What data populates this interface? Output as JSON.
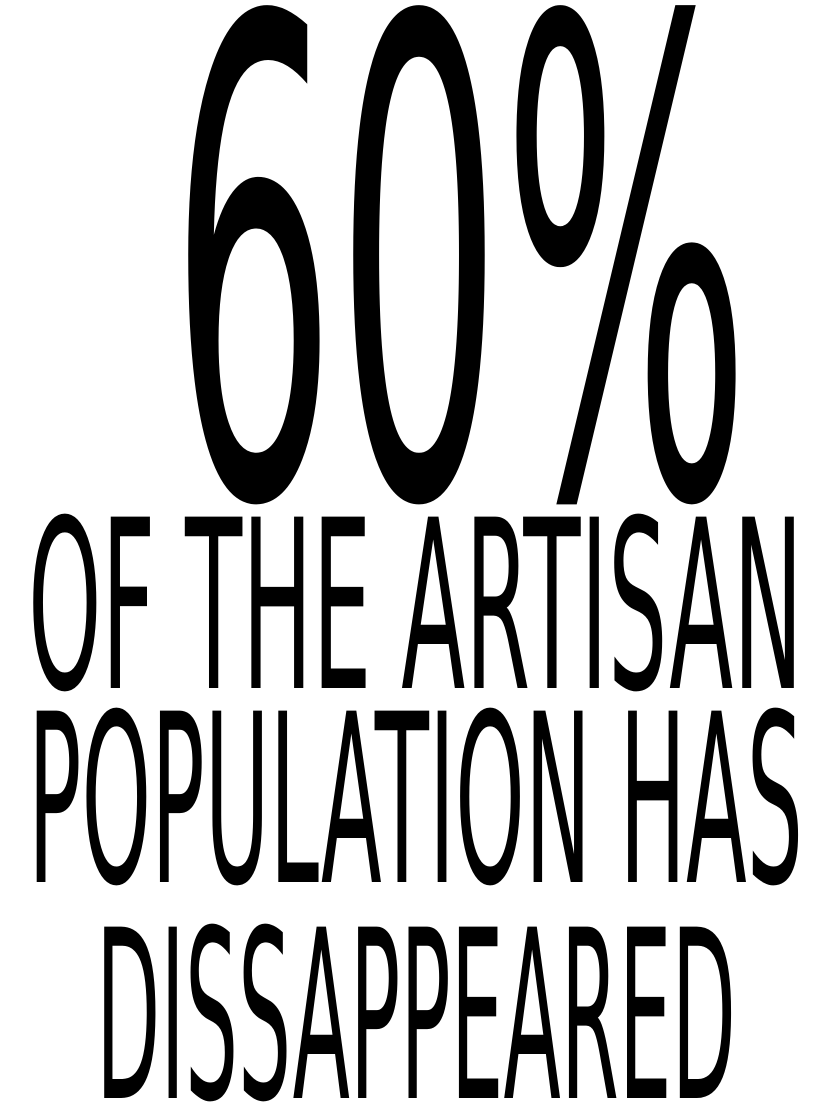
{
  "colors": {
    "background": "#ffffff",
    "text": "#000000"
  },
  "headline": {
    "figure": "60%",
    "lines": [
      "OF THE ARTISAN",
      "POPULATION HAS",
      "DISSAPPEARED"
    ]
  }
}
